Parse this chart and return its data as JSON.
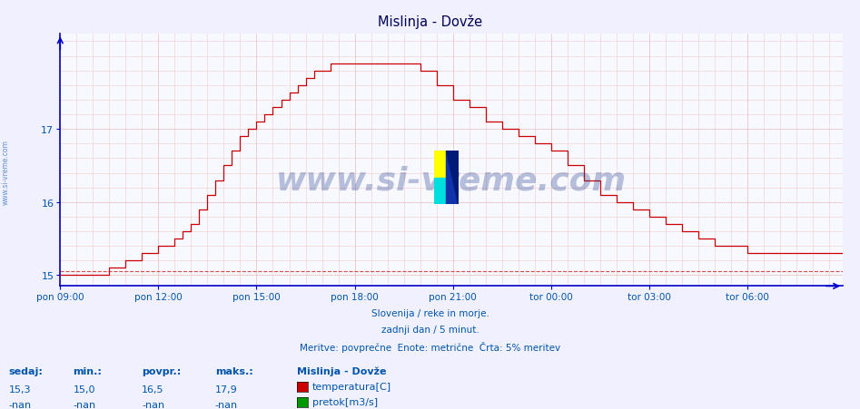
{
  "title": "Mislinja - Dovže",
  "background_color": "#f0f0ff",
  "plot_bg_color": "#f8f8ff",
  "line_color": "#cc0000",
  "axis_color": "#0000cc",
  "text_color": "#0055aa",
  "title_color": "#000055",
  "ylim": [
    14.85,
    18.3
  ],
  "yticks": [
    15,
    16,
    17
  ],
  "subtitle1": "Slovenija / reke in morje.",
  "subtitle2": "zadnji dan / 5 minut.",
  "subtitle3": "Meritve: povprečne  Enote: metrične  Črta: 5% meritev",
  "legend_title": "Mislinja - Dovže",
  "legend_items": [
    "temperatura[C]",
    "pretok[m3/s]"
  ],
  "legend_colors": [
    "#cc0000",
    "#009900"
  ],
  "stats_headers": [
    "sedaj:",
    "min.:",
    "povpr.:",
    "maks.:"
  ],
  "stats_temp": [
    "15,3",
    "15,0",
    "16,5",
    "17,9"
  ],
  "stats_pretok": [
    "-nan",
    "-nan",
    "-nan",
    "-nan"
  ],
  "watermark": "www.si-vreme.com",
  "min_line_y": 15.05,
  "xtick_labels": [
    "pon 09:00",
    "pon 12:00",
    "pon 15:00",
    "pon 18:00",
    "pon 21:00",
    "tor 00:00",
    "tor 03:00",
    "tor 06:00"
  ],
  "xtick_positions": [
    0,
    36,
    72,
    108,
    144,
    180,
    216,
    252
  ],
  "total_points": 288,
  "sidewater_text": "www.si-vreme.com",
  "grid_minor_color": "#f0cccc",
  "grid_major_color": "#ddaaaa"
}
